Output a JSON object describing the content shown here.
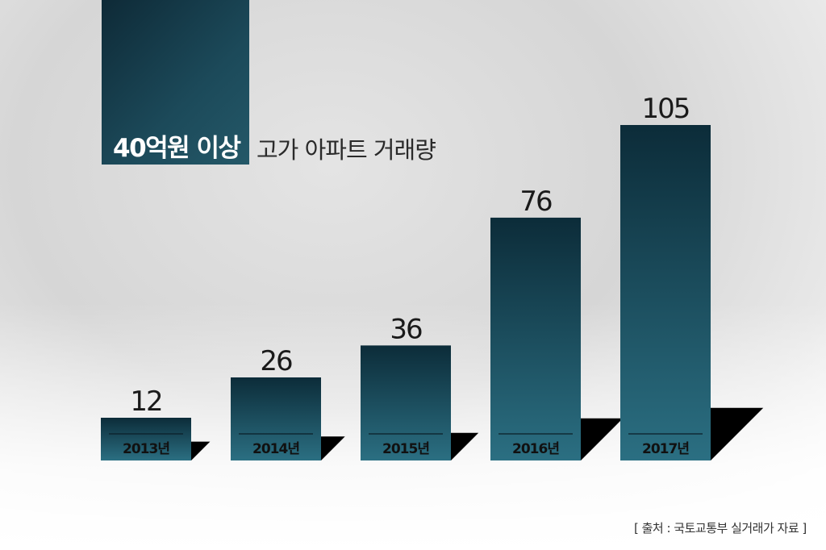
{
  "title": {
    "highlight": "40억원 이상",
    "rest": "고가 아파트 거래량"
  },
  "source": "[ 출처 : 국토교통부 실거래가 자료 ]",
  "colors": {
    "bar_top": "#0c2c39",
    "bar_bottom": "#2b6f82",
    "shadow": "#000000",
    "value_text": "#1a1a1a",
    "label_text": "#111111"
  },
  "chart_data": {
    "type": "bar",
    "categories": [
      "2013년",
      "2014년",
      "2015년",
      "2016년",
      "2017년"
    ],
    "values": [
      12,
      26,
      36,
      76,
      105
    ],
    "ylim": [
      0,
      105
    ]
  }
}
